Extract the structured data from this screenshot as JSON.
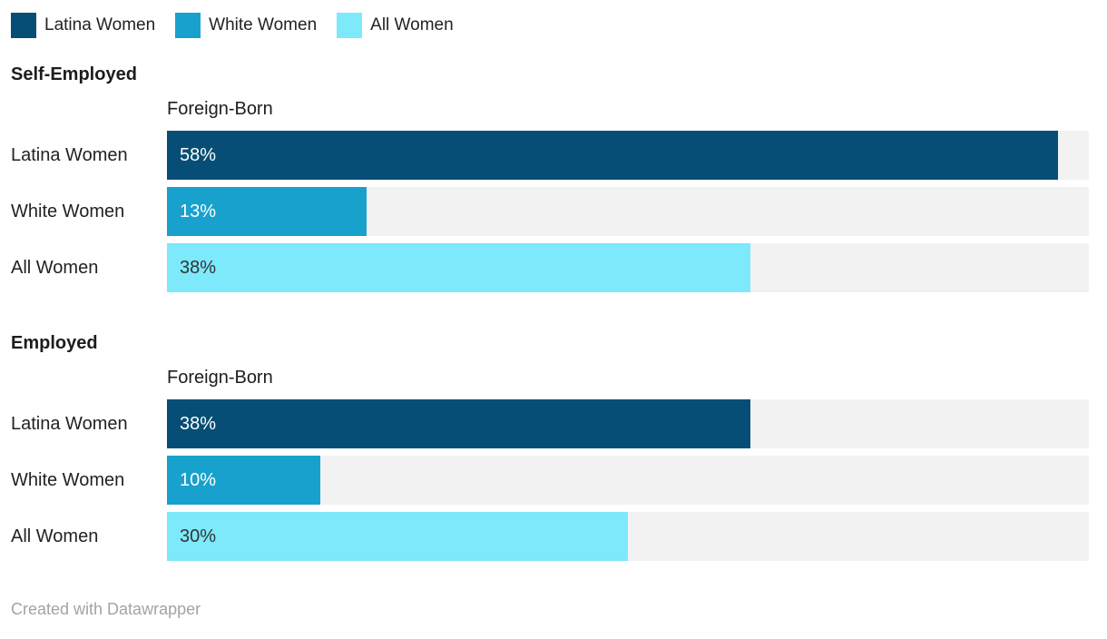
{
  "legend": {
    "items": [
      {
        "label": "Latina Women",
        "color": "#064e75"
      },
      {
        "label": "White Women",
        "color": "#18a1cd"
      },
      {
        "label": "All Women",
        "color": "#7de9fa"
      }
    ]
  },
  "chart_data": {
    "type": "bar",
    "title": "",
    "unit": "%",
    "axis_max": 60,
    "grid": false,
    "legend_position": "top",
    "groups": [
      {
        "title": "Self-Employed",
        "column_header": "Foreign-Born",
        "categories": [
          "Latina Women",
          "White Women",
          "All Women"
        ],
        "values": [
          58,
          13,
          38
        ],
        "value_labels": [
          "58%",
          "13%",
          "38%"
        ]
      },
      {
        "title": "Employed",
        "column_header": "Foreign-Born",
        "categories": [
          "Latina Women",
          "White Women",
          "All Women"
        ],
        "values": [
          38,
          10,
          30
        ],
        "value_labels": [
          "38%",
          "10%",
          "30%"
        ]
      }
    ]
  },
  "colors": {
    "latina": "#064e75",
    "white": "#18a1cd",
    "all": "#7de9fa",
    "track": "#f2f2f2",
    "heading_text": "#1d1d1d",
    "footer_text": "#a3a3a3"
  },
  "footer": {
    "credit": "Created with Datawrapper"
  }
}
